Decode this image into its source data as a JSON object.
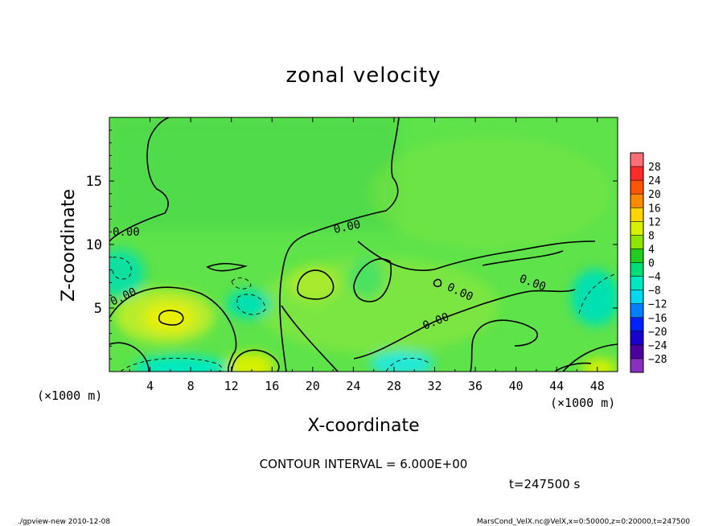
{
  "chart_data": {
    "type": "heatmap",
    "title": "zonal velocity",
    "xlabel": "X-coordinate",
    "ylabel": "Z-coordinate",
    "x_unit": "(×1000 m)",
    "y_unit": "(×1000 m)",
    "xlim": [
      0,
      50
    ],
    "ylim": [
      0,
      20
    ],
    "x_ticks": [
      4,
      8,
      12,
      16,
      20,
      24,
      28,
      32,
      36,
      40,
      44,
      48
    ],
    "y_ticks": [
      5,
      10,
      15
    ],
    "colorbar": {
      "labels": [
        28,
        24,
        20,
        16,
        12,
        8,
        4,
        0,
        -4,
        -8,
        -12,
        -16,
        -20,
        -24,
        -28
      ],
      "colors": [
        "#ff6f77",
        "#ff2a2a",
        "#ff5500",
        "#ff8c00",
        "#ffd400",
        "#d6f000",
        "#8ce600",
        "#22cc22",
        "#00dd77",
        "#00e8c0",
        "#00d8f0",
        "#0080ff",
        "#0022ff",
        "#1a00cc",
        "#4b00a0",
        "#8a30c0"
      ]
    },
    "contour_labels": [
      "0.00",
      "0.00",
      "0.00",
      "0.00",
      "0.00",
      "0.00"
    ],
    "contour_interval": "CONTOUR INTERVAL = 6.000E+00",
    "time": "t=247500 s",
    "footer_left": "./gpview-new 2010-12-08",
    "footer_right": "MarsCond_VelX.nc@VelX,x=0:50000,z=0:20000,t=247500",
    "grid": false
  }
}
